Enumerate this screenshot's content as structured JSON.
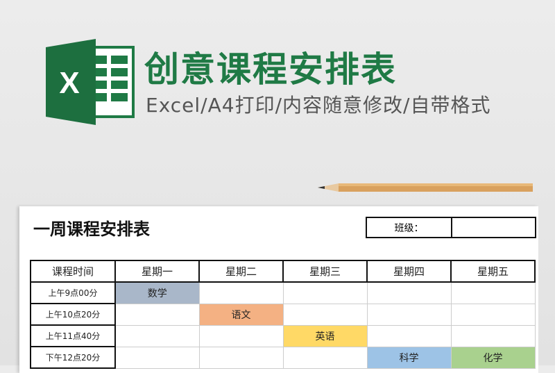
{
  "header": {
    "title": "创意课程安排表",
    "subtitle": "Excel/A4打印/内容随意修改/自带格式",
    "logo_letter": "X"
  },
  "colors": {
    "brand": "#1f7a45",
    "math": "#a9b7c9",
    "chinese": "#f4b183",
    "english": "#ffd966",
    "science": "#9dc3e6",
    "chemistry": "#a9d18e"
  },
  "sheet": {
    "title": "一周课程安排表",
    "class_label": "班级：",
    "class_value": "",
    "columns": [
      "课程时间",
      "星期一",
      "星期二",
      "星期三",
      "星期四",
      "星期五"
    ],
    "rows": [
      {
        "time": "上午9点00分",
        "cells": [
          "数学",
          "",
          "",
          "",
          ""
        ]
      },
      {
        "time": "上午10点20分",
        "cells": [
          "",
          "语文",
          "",
          "",
          ""
        ]
      },
      {
        "time": "上午11点40分",
        "cells": [
          "",
          "",
          "英语",
          "",
          ""
        ]
      },
      {
        "time": "下午12点20分",
        "cells": [
          "",
          "",
          "",
          "科学",
          "化学"
        ]
      }
    ]
  }
}
